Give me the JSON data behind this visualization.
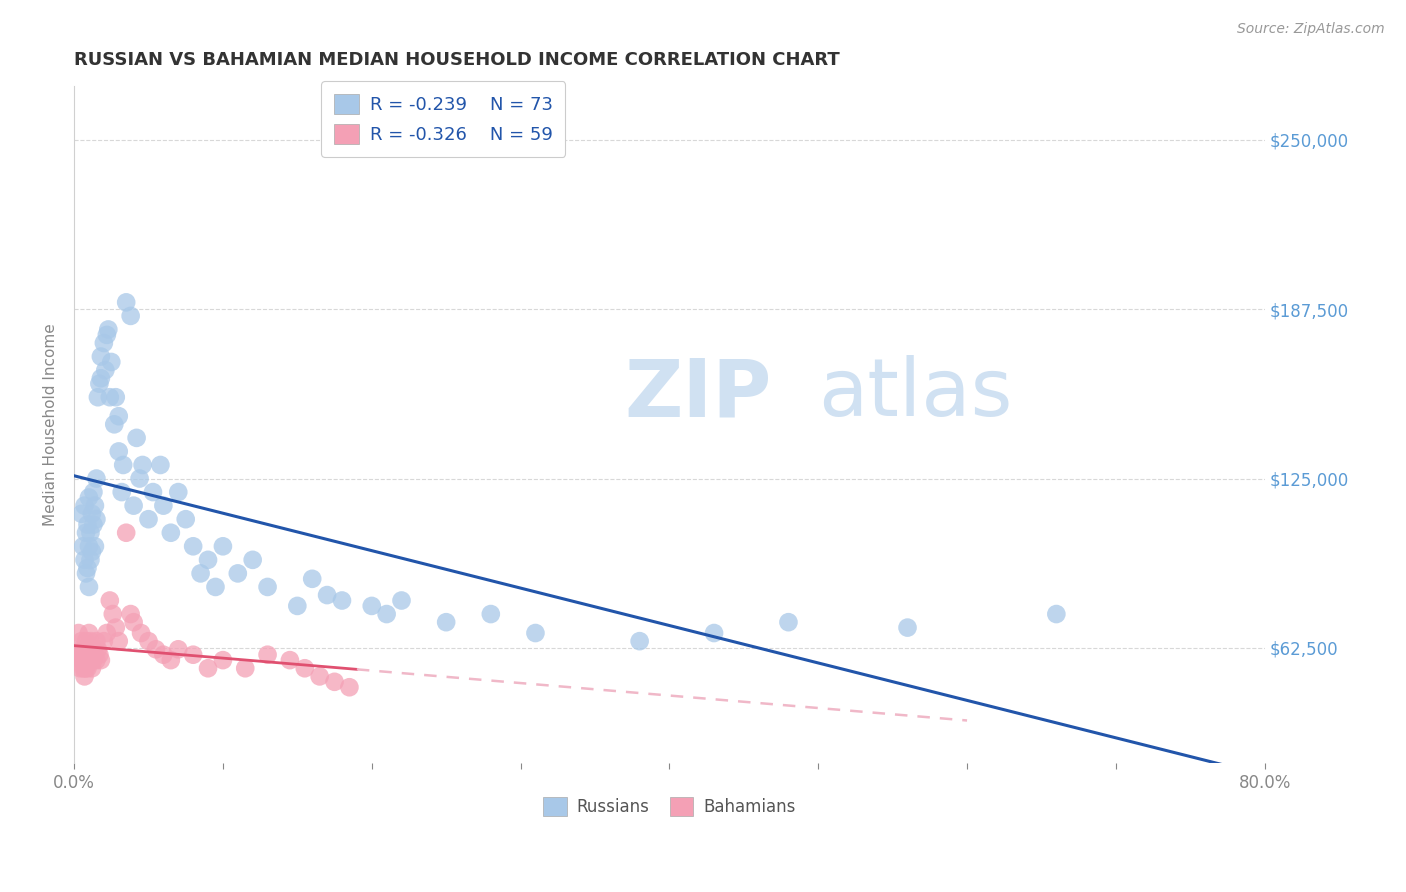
{
  "title": "RUSSIAN VS BAHAMIAN MEDIAN HOUSEHOLD INCOME CORRELATION CHART",
  "source": "Source: ZipAtlas.com",
  "ylabel": "Median Household Income",
  "y_ticks": [
    62500,
    125000,
    187500,
    250000
  ],
  "y_tick_labels": [
    "$62,500",
    "$125,000",
    "$187,500",
    "$250,000"
  ],
  "xlim": [
    0.0,
    0.8
  ],
  "ylim": [
    20000,
    270000
  ],
  "russian_color": "#a8c8e8",
  "bahamian_color": "#f4a0b5",
  "russian_line_color": "#2255aa",
  "bahamian_line_color": "#e05070",
  "bahamian_line_dashed_color": "#f0b8c8",
  "legend_r_russian": "-0.239",
  "legend_n_russian": "73",
  "legend_r_bahamian": "-0.326",
  "legend_n_bahamian": "59",
  "russian_x": [
    0.005,
    0.006,
    0.007,
    0.007,
    0.008,
    0.008,
    0.009,
    0.009,
    0.01,
    0.01,
    0.01,
    0.011,
    0.011,
    0.012,
    0.012,
    0.013,
    0.013,
    0.014,
    0.014,
    0.015,
    0.015,
    0.016,
    0.017,
    0.018,
    0.018,
    0.02,
    0.021,
    0.022,
    0.023,
    0.024,
    0.025,
    0.027,
    0.028,
    0.03,
    0.03,
    0.032,
    0.033,
    0.035,
    0.038,
    0.04,
    0.042,
    0.044,
    0.046,
    0.05,
    0.053,
    0.058,
    0.06,
    0.065,
    0.07,
    0.075,
    0.08,
    0.085,
    0.09,
    0.095,
    0.1,
    0.11,
    0.12,
    0.13,
    0.15,
    0.16,
    0.17,
    0.18,
    0.2,
    0.21,
    0.22,
    0.25,
    0.28,
    0.31,
    0.38,
    0.43,
    0.48,
    0.56,
    0.66
  ],
  "russian_y": [
    112000,
    100000,
    115000,
    95000,
    105000,
    90000,
    108000,
    92000,
    118000,
    100000,
    85000,
    105000,
    95000,
    112000,
    98000,
    120000,
    108000,
    115000,
    100000,
    125000,
    110000,
    155000,
    160000,
    170000,
    162000,
    175000,
    165000,
    178000,
    180000,
    155000,
    168000,
    145000,
    155000,
    135000,
    148000,
    120000,
    130000,
    190000,
    185000,
    115000,
    140000,
    125000,
    130000,
    110000,
    120000,
    130000,
    115000,
    105000,
    120000,
    110000,
    100000,
    90000,
    95000,
    85000,
    100000,
    90000,
    95000,
    85000,
    78000,
    88000,
    82000,
    80000,
    78000,
    75000,
    80000,
    72000,
    75000,
    68000,
    65000,
    68000,
    72000,
    70000,
    75000
  ],
  "bahamian_x": [
    0.003,
    0.004,
    0.004,
    0.005,
    0.005,
    0.005,
    0.006,
    0.006,
    0.006,
    0.007,
    0.007,
    0.007,
    0.007,
    0.008,
    0.008,
    0.008,
    0.009,
    0.009,
    0.009,
    0.01,
    0.01,
    0.01,
    0.011,
    0.011,
    0.012,
    0.012,
    0.013,
    0.013,
    0.014,
    0.015,
    0.015,
    0.016,
    0.017,
    0.018,
    0.02,
    0.022,
    0.024,
    0.026,
    0.028,
    0.03,
    0.035,
    0.038,
    0.04,
    0.045,
    0.05,
    0.055,
    0.06,
    0.065,
    0.07,
    0.08,
    0.09,
    0.1,
    0.115,
    0.13,
    0.145,
    0.155,
    0.165,
    0.175,
    0.185
  ],
  "bahamian_y": [
    68000,
    60000,
    55000,
    62000,
    58000,
    65000,
    60000,
    55000,
    58000,
    62000,
    58000,
    55000,
    52000,
    65000,
    60000,
    55000,
    62000,
    58000,
    55000,
    68000,
    62000,
    58000,
    65000,
    60000,
    58000,
    55000,
    62000,
    58000,
    60000,
    65000,
    58000,
    62000,
    60000,
    58000,
    65000,
    68000,
    80000,
    75000,
    70000,
    65000,
    105000,
    75000,
    72000,
    68000,
    65000,
    62000,
    60000,
    58000,
    62000,
    60000,
    55000,
    58000,
    55000,
    60000,
    58000,
    55000,
    52000,
    50000,
    48000
  ]
}
